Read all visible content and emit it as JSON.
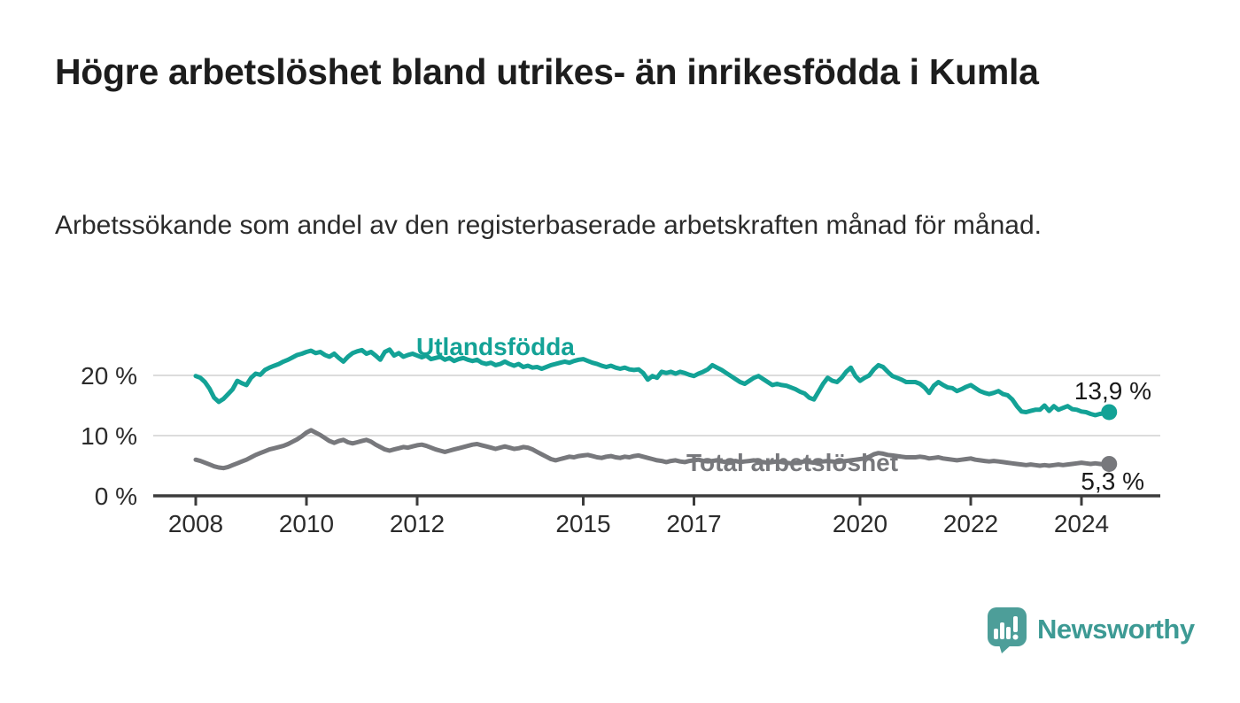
{
  "header": {
    "title": "Högre arbetslöshet bland utrikes- än inrikesfödda i Kumla",
    "subtitle": "Arbetssökande som andel av den registerbaserade arbetskraften månad för månad."
  },
  "footer": {
    "brand": "Newsworthy",
    "brand_color": "#3d9a94",
    "logo_icon": "speech-bubble-bar-chart-icon"
  },
  "colors": {
    "accent_teal": "#13a296",
    "neutral_gray": "#77787c",
    "grid": "#dcdcdc",
    "axis": "#3c3c3c",
    "text_dark": "#1a1a1a",
    "tick_text": "#2b2b2b"
  },
  "chart_data": {
    "type": "line",
    "frequency": "monthly",
    "x_start": "2008-01",
    "x_end": "2024-07",
    "unit": "%",
    "grid": "horizontal",
    "legend_position": "inline-labels",
    "ylim": [
      0,
      26
    ],
    "x_ticks": [
      2008,
      2010,
      2012,
      2015,
      2017,
      2020,
      2022,
      2024
    ],
    "y_ticks": [
      {
        "value": 0,
        "label": "0 %"
      },
      {
        "value": 10,
        "label": "10 %"
      },
      {
        "value": 20,
        "label": "20 %"
      }
    ],
    "series": [
      {
        "name": "Utlandsfödda",
        "color": "#13a296",
        "end_label": "13,9 %",
        "last_value": 13.9,
        "values": [
          19.9,
          19.6,
          18.9,
          17.8,
          16.3,
          15.6,
          16.1,
          16.9,
          17.7,
          19.1,
          18.7,
          18.4,
          19.6,
          20.3,
          20.1,
          20.9,
          21.3,
          21.6,
          21.9,
          22.3,
          22.6,
          23.0,
          23.4,
          23.6,
          23.9,
          24.1,
          23.7,
          23.9,
          23.4,
          23.1,
          23.6,
          22.9,
          22.3,
          23.1,
          23.7,
          24.0,
          24.2,
          23.6,
          23.9,
          23.3,
          22.6,
          23.9,
          24.3,
          23.3,
          23.7,
          23.1,
          23.4,
          23.6,
          23.3,
          23.0,
          23.3,
          22.7,
          22.9,
          23.1,
          22.6,
          22.9,
          22.4,
          22.7,
          22.9,
          22.6,
          22.4,
          22.6,
          22.1,
          21.9,
          22.1,
          21.7,
          21.9,
          22.3,
          21.9,
          21.6,
          21.9,
          21.4,
          21.6,
          21.3,
          21.4,
          21.1,
          21.4,
          21.7,
          21.9,
          22.1,
          22.3,
          22.1,
          22.4,
          22.6,
          22.7,
          22.4,
          22.1,
          21.9,
          21.6,
          21.4,
          21.6,
          21.3,
          21.1,
          21.3,
          21.0,
          20.9,
          21.0,
          20.4,
          19.3,
          19.9,
          19.6,
          20.6,
          20.4,
          20.6,
          20.3,
          20.6,
          20.4,
          20.1,
          19.9,
          20.3,
          20.6,
          21.0,
          21.7,
          21.3,
          20.9,
          20.4,
          19.9,
          19.4,
          18.9,
          18.6,
          19.1,
          19.6,
          19.9,
          19.4,
          18.9,
          18.4,
          18.6,
          18.4,
          18.3,
          18.0,
          17.7,
          17.3,
          17.0,
          16.3,
          16.0,
          17.3,
          18.6,
          19.6,
          19.1,
          18.9,
          19.6,
          20.6,
          21.3,
          19.9,
          19.1,
          19.6,
          20.0,
          21.0,
          21.7,
          21.4,
          20.6,
          19.9,
          19.6,
          19.3,
          18.9,
          18.9,
          18.9,
          18.6,
          18.0,
          17.1,
          18.3,
          18.9,
          18.4,
          18.0,
          17.9,
          17.4,
          17.7,
          18.1,
          18.4,
          17.9,
          17.4,
          17.1,
          16.9,
          17.1,
          17.4,
          16.9,
          16.7,
          16.0,
          14.9,
          14.0,
          13.9,
          14.1,
          14.3,
          14.3,
          15.0,
          14.1,
          14.9,
          14.3,
          14.6,
          14.9,
          14.4,
          14.3,
          14.0,
          13.9,
          13.6,
          13.4,
          13.6,
          13.7,
          13.9
        ]
      },
      {
        "name": "Total arbetslöshet",
        "color": "#77787c",
        "end_label": "5,3 %",
        "last_value": 5.3,
        "values": [
          6.0,
          5.8,
          5.5,
          5.2,
          4.9,
          4.7,
          4.6,
          4.8,
          5.1,
          5.4,
          5.7,
          6.0,
          6.4,
          6.8,
          7.1,
          7.4,
          7.7,
          7.9,
          8.1,
          8.3,
          8.6,
          9.0,
          9.4,
          9.9,
          10.5,
          10.9,
          10.5,
          10.1,
          9.6,
          9.1,
          8.8,
          9.1,
          9.3,
          8.9,
          8.7,
          8.9,
          9.1,
          9.3,
          9.0,
          8.5,
          8.1,
          7.7,
          7.5,
          7.7,
          7.9,
          8.1,
          8.0,
          8.2,
          8.4,
          8.5,
          8.3,
          8.0,
          7.7,
          7.5,
          7.3,
          7.5,
          7.7,
          7.9,
          8.1,
          8.3,
          8.5,
          8.6,
          8.4,
          8.2,
          8.0,
          7.8,
          8.0,
          8.2,
          8.0,
          7.8,
          7.9,
          8.1,
          8.0,
          7.7,
          7.3,
          6.9,
          6.5,
          6.1,
          5.9,
          6.1,
          6.3,
          6.5,
          6.4,
          6.6,
          6.7,
          6.8,
          6.6,
          6.4,
          6.3,
          6.5,
          6.6,
          6.4,
          6.3,
          6.5,
          6.4,
          6.6,
          6.7,
          6.5,
          6.3,
          6.1,
          5.9,
          5.8,
          5.6,
          5.8,
          5.9,
          5.7,
          5.6,
          5.8,
          5.9,
          6.0,
          5.8,
          5.7,
          5.8,
          5.9,
          5.7,
          5.6,
          5.7,
          5.8,
          5.6,
          5.7,
          5.8,
          5.9,
          5.7,
          5.6,
          5.5,
          5.6,
          5.7,
          5.6,
          5.5,
          5.4,
          5.5,
          5.6,
          5.7,
          5.6,
          5.5,
          5.6,
          5.7,
          5.8,
          5.7,
          5.6,
          5.7,
          5.8,
          5.9,
          6.0,
          6.1,
          6.2,
          6.5,
          6.9,
          7.1,
          7.0,
          6.8,
          6.7,
          6.6,
          6.5,
          6.4,
          6.4,
          6.4,
          6.5,
          6.4,
          6.2,
          6.3,
          6.4,
          6.2,
          6.1,
          6.0,
          5.9,
          6.0,
          6.1,
          6.2,
          6.0,
          5.9,
          5.8,
          5.7,
          5.8,
          5.7,
          5.6,
          5.5,
          5.4,
          5.3,
          5.2,
          5.1,
          5.2,
          5.1,
          5.0,
          5.1,
          5.0,
          5.1,
          5.2,
          5.1,
          5.2,
          5.3,
          5.4,
          5.5,
          5.4,
          5.3,
          5.4,
          5.3,
          5.2,
          5.3
        ]
      }
    ]
  }
}
